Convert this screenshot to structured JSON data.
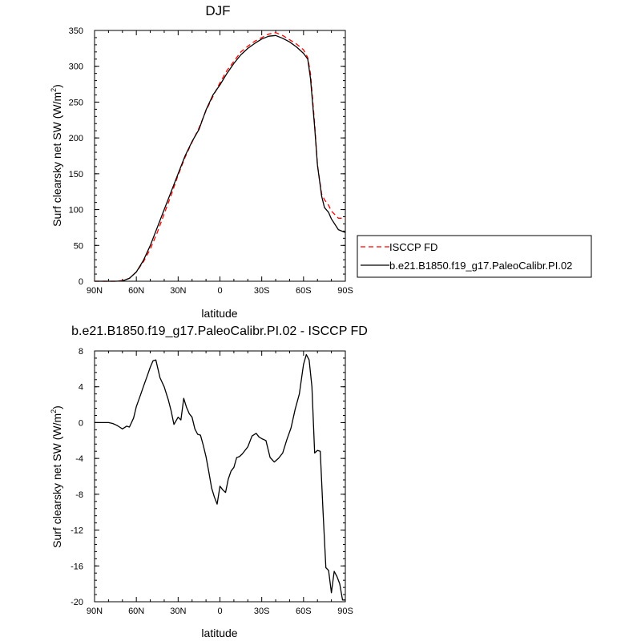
{
  "chart_data": [
    {
      "type": "line",
      "title": "DJF",
      "xlabel": "latitude",
      "ylabel": "Surf clearsky net SW (W/m",
      "ylabel_sup": "2",
      "ylabel_tail": ")",
      "xlim": [
        90,
        -90
      ],
      "ylim": [
        0,
        350
      ],
      "x_ticks": [
        90,
        60,
        30,
        0,
        -30,
        -60,
        -90
      ],
      "x_tick_labels": [
        "90N",
        "60N",
        "30N",
        "0",
        "30S",
        "60S",
        "90S"
      ],
      "y_ticks": [
        0,
        50,
        100,
        150,
        200,
        250,
        300,
        350
      ],
      "y_tick_labels": [
        "0",
        "50",
        "100",
        "150",
        "200",
        "250",
        "300",
        "350"
      ],
      "legend": "outside-right",
      "series": [
        {
          "name": "ISCCP FD",
          "color": "#ff0000",
          "dash": "dashed",
          "x": [
            90,
            85,
            80,
            75,
            70,
            65,
            60,
            55,
            50,
            45,
            40,
            35,
            30,
            25,
            20,
            15,
            10,
            5,
            0,
            -5,
            -10,
            -15,
            -20,
            -25,
            -30,
            -35,
            -40,
            -45,
            -50,
            -55,
            -60,
            -63,
            -65,
            -68,
            -70,
            -73,
            -75,
            -78,
            -80,
            -85,
            -90
          ],
          "y": [
            0,
            0,
            0,
            0,
            1,
            4,
            13,
            27,
            45,
            68,
            94,
            120,
            148,
            173,
            194,
            214,
            238,
            258,
            277,
            294,
            307,
            320,
            328,
            335,
            340,
            345,
            347,
            343,
            337,
            331,
            323,
            312,
            290,
            220,
            162,
            122,
            114,
            106,
            98,
            88,
            88
          ]
        },
        {
          "name": "b.e21.B1850.f19_g17.PaleoCalibr.PI.02",
          "color": "#000000",
          "dash": "solid",
          "x": [
            90,
            85,
            80,
            75,
            70,
            65,
            60,
            55,
            50,
            45,
            40,
            35,
            30,
            25,
            20,
            15,
            10,
            5,
            0,
            -5,
            -10,
            -15,
            -20,
            -25,
            -30,
            -35,
            -40,
            -45,
            -50,
            -55,
            -60,
            -63,
            -65,
            -68,
            -70,
            -73,
            -75,
            -78,
            -80,
            -85,
            -90
          ],
          "y": [
            0,
            0,
            0,
            0,
            0.5,
            4,
            13,
            29,
            50,
            75,
            100,
            125,
            150,
            175,
            195,
            212,
            239,
            260,
            274,
            290,
            304,
            316,
            325,
            332,
            338,
            342,
            343,
            339,
            334,
            327,
            318,
            310,
            283,
            215,
            162,
            119,
            103,
            96,
            87,
            72,
            68
          ]
        }
      ]
    },
    {
      "type": "line",
      "title": "b.e21.B1850.f19_g17.PaleoCalibr.PI.02 - ISCCP FD",
      "xlabel": "latitude",
      "ylabel": "Surf clearsky net SW (W/m",
      "ylabel_sup": "2",
      "ylabel_tail": ")",
      "xlim": [
        90,
        -90
      ],
      "ylim": [
        -20,
        8
      ],
      "x_ticks": [
        90,
        60,
        30,
        0,
        -30,
        -60,
        -90
      ],
      "x_tick_labels": [
        "90N",
        "60N",
        "30N",
        "0",
        "30S",
        "60S",
        "90S"
      ],
      "y_ticks": [
        -20,
        -16,
        -12,
        -8,
        -4,
        0,
        4,
        8
      ],
      "y_tick_labels": [
        "-20",
        "-16",
        "-12",
        "-8",
        "-4",
        "0",
        "4",
        "8"
      ],
      "series": [
        {
          "color": "#000000",
          "dash": "solid",
          "x": [
            90,
            85,
            80,
            77,
            74,
            72,
            70,
            67,
            65,
            62,
            60,
            57,
            55,
            52,
            50,
            48,
            46,
            43,
            40,
            37,
            35,
            33,
            30,
            28,
            26,
            24,
            22,
            20,
            18,
            16,
            14,
            12,
            10,
            8,
            6,
            4,
            2,
            0,
            -2,
            -4,
            -6,
            -8,
            -10,
            -12,
            -14,
            -16,
            -18,
            -20,
            -23,
            -26,
            -28,
            -30,
            -33,
            -36,
            -39,
            -42,
            -45,
            -48,
            -51,
            -54,
            -57,
            -60,
            -62,
            -64,
            -66,
            -68,
            -70,
            -72,
            -74,
            -76,
            -78,
            -80,
            -82,
            -84,
            -86,
            -88,
            -90
          ],
          "y": [
            0,
            0,
            0,
            -0.1,
            -0.3,
            -0.5,
            -0.7,
            -0.4,
            -0.5,
            0.5,
            1.8,
            3.1,
            4,
            5.3,
            6.2,
            6.9,
            7.0,
            5.0,
            4,
            2.5,
            1.3,
            -0.2,
            0.6,
            0.3,
            2.7,
            1.7,
            1,
            0.6,
            -0.7,
            -1.3,
            -1.4,
            -2.5,
            -3.8,
            -5.5,
            -7.3,
            -8.3,
            -9.1,
            -7.1,
            -7.5,
            -7.8,
            -6.3,
            -5.4,
            -5.0,
            -3.9,
            -3.8,
            -3.5,
            -3.1,
            -2.7,
            -1.5,
            -1.2,
            -1.6,
            -1.8,
            -2.0,
            -3.9,
            -4.4,
            -4.0,
            -3.4,
            -1.9,
            -0.6,
            1.5,
            3.2,
            6.5,
            7.6,
            7.0,
            4.0,
            -3.4,
            -3.1,
            -3.2,
            -10.0,
            -16.2,
            -16.5,
            -19.0,
            -16.6,
            -17.2,
            -18.0,
            -19.8,
            -19.8
          ]
        }
      ]
    }
  ]
}
